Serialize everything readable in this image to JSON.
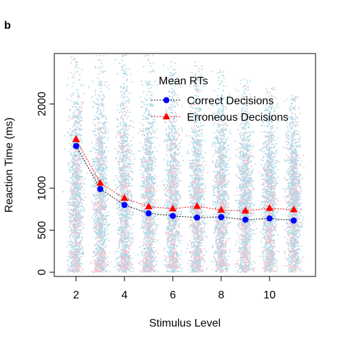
{
  "panel_label": "b",
  "chart_data": {
    "type": "scatter",
    "title": "",
    "xlabel": "Stimulus Level",
    "ylabel": "Reaction Time (ms)",
    "xlim": [
      1.1,
      11.9
    ],
    "ylim": [
      -50,
      2600
    ],
    "x_ticks": [
      2,
      4,
      6,
      8,
      10
    ],
    "y_ticks": [
      0,
      500,
      1000,
      2000
    ],
    "legend": {
      "title": "Mean RTs",
      "position": "top-right",
      "entries": [
        "Correct Decisions",
        "Erroneous Decisions"
      ]
    },
    "series": [
      {
        "name": "Correct Decisions",
        "marker": "circle",
        "color": "#0000ff",
        "line_color": "#000000",
        "x": [
          2,
          3,
          4,
          5,
          6,
          7,
          8,
          9,
          10,
          11
        ],
        "y": [
          1500,
          990,
          800,
          700,
          670,
          650,
          655,
          625,
          640,
          615
        ]
      },
      {
        "name": "Erroneous Decisions",
        "marker": "triangle",
        "color": "#ff0000",
        "line_color": "#ff0000",
        "x": [
          2,
          3,
          4,
          5,
          6,
          7,
          8,
          9,
          10,
          11
        ],
        "y": [
          1580,
          1060,
          880,
          780,
          755,
          785,
          740,
          730,
          760,
          745
        ]
      }
    ],
    "raw_trials": {
      "correct_color": "#add8e6",
      "error_color": "#ffc0cb",
      "x_levels": [
        2,
        3,
        4,
        5,
        6,
        7,
        8,
        9,
        10,
        11
      ],
      "upper_extent": [
        2600,
        2600,
        2600,
        2600,
        2500,
        2500,
        2400,
        2300,
        2200,
        2100
      ]
    }
  }
}
